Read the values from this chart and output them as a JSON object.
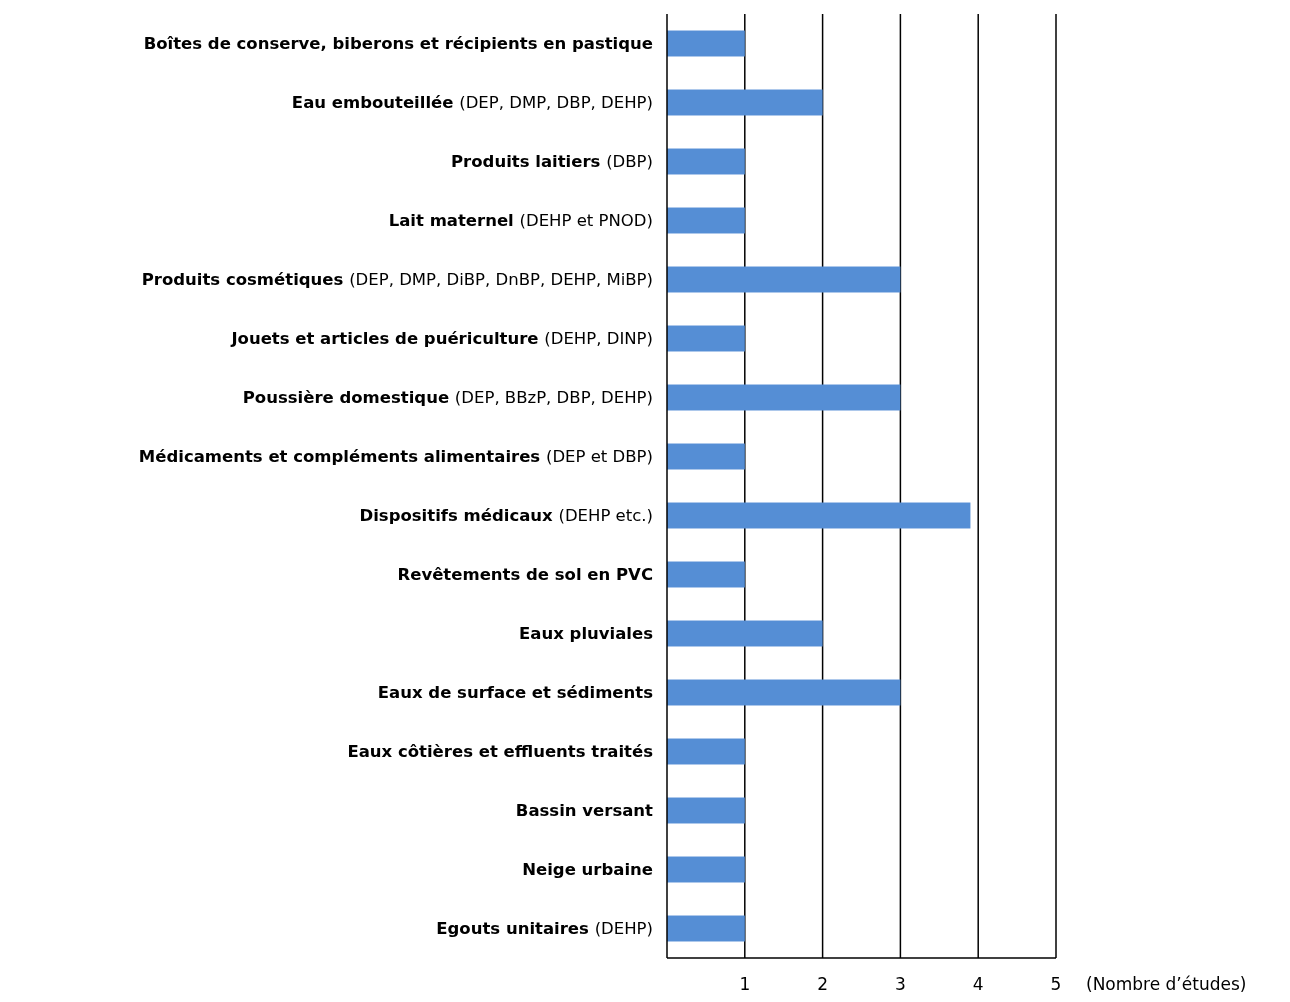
{
  "chart_data": {
    "type": "bar",
    "orientation": "horizontal",
    "categories": [
      "Boîtes de conserve, biberons et récipients en pastique",
      "Eau embouteillée (DEP, DMP, DBP, DEHP)",
      "Produits laitiers (DBP)",
      "Lait maternel (DEHP et PNOD)",
      "Produits cosmétiques (DEP, DMP, DiBP, DnBP, DEHP, MiBP)",
      "Jouets et articles de puériculture (DEHP, DINP)",
      "Poussière domestique (DEP, BBzP, DBP, DEHP)",
      "Médicaments et compléments alimentaires (DEP et DBP)",
      "Dispositifs médicaux (DEHP etc.)",
      "Revêtements de sol en PVC",
      "Eaux pluviales",
      "Eaux de surface et sédiments",
      "Eaux côtières et effluents traités",
      "Bassin versant",
      "Neige urbaine",
      "Egouts unitaires (DEHP)"
    ],
    "values": [
      1,
      2,
      1,
      1,
      3,
      1,
      3,
      1,
      3.9,
      1,
      2,
      3,
      1,
      1,
      1,
      1
    ],
    "color": "#558ed5",
    "xlim": [
      0,
      5
    ],
    "xticks": [
      1,
      2,
      3,
      4,
      5
    ],
    "xlabel": "(Nombre d’études)",
    "grid": "x"
  }
}
